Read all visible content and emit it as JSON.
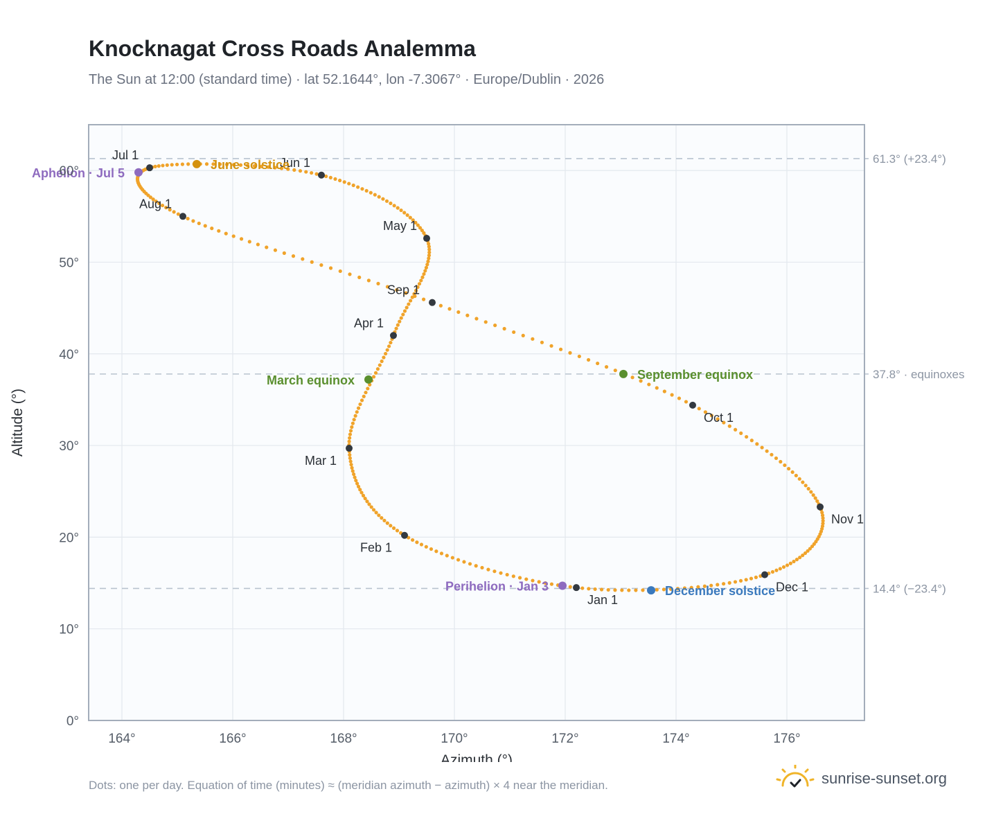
{
  "title": "Knocknagat Cross Roads Analemma",
  "subtitle": "The Sun at 12:00 (standard time) · lat 52.1644°, lon -7.3067° · Europe/Dublin · 2026",
  "footnote": "Dots: one per day. Equation of time (minutes) ≈ (meridian azimuth − azimuth) × 4 near the meridian.",
  "brand": {
    "name": "sunrise-sunset.org",
    "icon": "sun-check-icon"
  },
  "chart_data": {
    "type": "scatter",
    "xlabel": "Azimuth (°)",
    "ylabel": "Altitude (°)",
    "xlim": [
      163.4,
      177.4
    ],
    "ylim": [
      0,
      65
    ],
    "xticks": [
      164,
      166,
      168,
      170,
      172,
      174,
      176
    ],
    "yticks": [
      0,
      10,
      20,
      30,
      40,
      50,
      60
    ],
    "tick_suffix": "°",
    "grid": true,
    "series": [
      {
        "points": [
          {
            "x": 172.2,
            "y": 14.5
          },
          {
            "x": 169.1,
            "y": 20.2
          },
          {
            "x": 168.1,
            "y": 29.7
          },
          {
            "x": 168.9,
            "y": 42.0
          },
          {
            "x": 169.5,
            "y": 52.6
          },
          {
            "x": 167.6,
            "y": 59.5
          },
          {
            "x": 164.5,
            "y": 60.3
          },
          {
            "x": 165.1,
            "y": 55.0
          },
          {
            "x": 169.6,
            "y": 45.6
          },
          {
            "x": 174.3,
            "y": 34.4
          },
          {
            "x": 176.6,
            "y": 23.3
          },
          {
            "x": 175.6,
            "y": 15.9
          },
          {
            "x": 172.2,
            "y": 14.5
          }
        ],
        "color": "#f0a32a"
      }
    ],
    "month_markers": [
      {
        "label": "Jan 1",
        "x": 172.2,
        "y": 14.5,
        "anchor": "below-right"
      },
      {
        "label": "Feb 1",
        "x": 169.1,
        "y": 20.2,
        "anchor": "below-left"
      },
      {
        "label": "Mar 1",
        "x": 168.1,
        "y": 29.7,
        "anchor": "below-left"
      },
      {
        "label": "Apr 1",
        "x": 168.9,
        "y": 42.0,
        "anchor": "left"
      },
      {
        "label": "May 1",
        "x": 169.5,
        "y": 52.6,
        "anchor": "left"
      },
      {
        "label": "Jun 1",
        "x": 167.6,
        "y": 59.5,
        "anchor": "above-left"
      },
      {
        "label": "Jul 1",
        "x": 164.5,
        "y": 60.3,
        "anchor": "above-left"
      },
      {
        "label": "Aug 1",
        "x": 165.1,
        "y": 55.0,
        "anchor": "above-left"
      },
      {
        "label": "Sep 1",
        "x": 169.6,
        "y": 45.6,
        "anchor": "above-left"
      },
      {
        "label": "Oct 1",
        "x": 174.3,
        "y": 34.4,
        "anchor": "below-right"
      },
      {
        "label": "Nov 1",
        "x": 176.6,
        "y": 23.3,
        "anchor": "below-right"
      },
      {
        "label": "Dec 1",
        "x": 175.6,
        "y": 15.9,
        "anchor": "below-right"
      }
    ],
    "events": [
      {
        "label": "June solstice",
        "x": 165.35,
        "y": 60.7,
        "color": "#d4920e",
        "anchor": "right"
      },
      {
        "label": "Aphelion · Jul 5",
        "x": 164.3,
        "y": 59.8,
        "color": "#8e6bbf",
        "anchor": "left"
      },
      {
        "label": "March equinox",
        "x": 168.45,
        "y": 37.2,
        "color": "#5a8f2e",
        "anchor": "left"
      },
      {
        "label": "September equinox",
        "x": 173.05,
        "y": 37.8,
        "color": "#5a8f2e",
        "anchor": "right"
      },
      {
        "label": "Perihelion · Jan 3",
        "x": 171.95,
        "y": 14.7,
        "color": "#8e6bbf",
        "anchor": "left"
      },
      {
        "label": "December solstice",
        "x": 173.55,
        "y": 14.2,
        "color": "#3a79bd",
        "anchor": "right"
      }
    ],
    "reference_lines": [
      {
        "y": 61.3,
        "label": "61.3° (+23.4°)"
      },
      {
        "y": 37.8,
        "label": "37.8° · equinoxes"
      },
      {
        "y": 14.4,
        "label": "14.4° (−23.4°)"
      }
    ]
  }
}
